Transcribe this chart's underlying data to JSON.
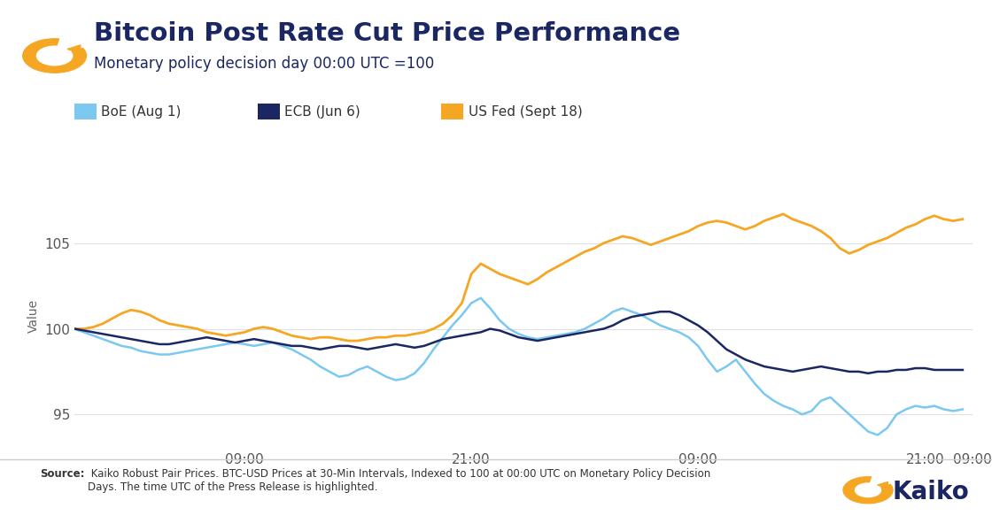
{
  "title": "Bitcoin Post Rate Cut Price Performance",
  "subtitle": "Monetary policy decision day 00:00 UTC =100",
  "ylabel": "Value",
  "source_bold": "Source:",
  "source_rest": " Kaiko Robust Pair Prices. BTC-USD Prices at 30-Min Intervals, Indexed to 100 at 00:00 UTC on Monetary Policy Decision\nDays. The time UTC of the Press Release is highlighted.",
  "legend": [
    "BoE (Aug 1)",
    "ECB (Jun 6)",
    "US Fed (Sept 18)"
  ],
  "colors": {
    "boe": "#7BC8F0",
    "ecb": "#1B2763",
    "fed": "#F5A623",
    "title": "#1B2763",
    "subtitle": "#1B2763",
    "background": "#FFFFFF",
    "grid": "#E0E0E0"
  },
  "xtick_labels": [
    "09:00",
    "21:00",
    "09:00",
    "21:00",
    "09:00"
  ],
  "yticks": [
    95,
    100,
    105
  ],
  "ylim": [
    93.0,
    108.5
  ],
  "xlim": [
    0,
    95
  ],
  "xtick_positions": [
    18,
    42,
    66,
    90,
    95
  ],
  "boe": [
    100.0,
    99.8,
    99.6,
    99.4,
    99.2,
    99.0,
    98.9,
    98.7,
    98.6,
    98.5,
    98.5,
    98.6,
    98.7,
    98.8,
    98.9,
    99.0,
    99.1,
    99.2,
    99.1,
    99.0,
    99.1,
    99.2,
    99.0,
    98.8,
    98.5,
    98.2,
    97.8,
    97.5,
    97.2,
    97.3,
    97.6,
    97.8,
    97.5,
    97.2,
    97.0,
    97.1,
    97.4,
    98.0,
    98.8,
    99.5,
    100.2,
    100.8,
    101.5,
    101.8,
    101.2,
    100.5,
    100.0,
    99.7,
    99.5,
    99.4,
    99.5,
    99.6,
    99.7,
    99.8,
    100.0,
    100.3,
    100.6,
    101.0,
    101.2,
    101.0,
    100.8,
    100.5,
    100.2,
    100.0,
    99.8,
    99.5,
    99.0,
    98.2,
    97.5,
    97.8,
    98.2,
    97.5,
    96.8,
    96.2,
    95.8,
    95.5,
    95.3,
    95.0,
    95.2,
    95.8,
    96.0,
    95.5,
    95.0,
    94.5,
    94.0,
    93.8,
    94.2,
    95.0,
    95.3,
    95.5,
    95.4,
    95.5,
    95.3,
    95.2,
    95.3
  ],
  "ecb": [
    100.0,
    99.9,
    99.8,
    99.7,
    99.6,
    99.5,
    99.4,
    99.3,
    99.2,
    99.1,
    99.1,
    99.2,
    99.3,
    99.4,
    99.5,
    99.4,
    99.3,
    99.2,
    99.3,
    99.4,
    99.3,
    99.2,
    99.1,
    99.0,
    99.0,
    98.9,
    98.8,
    98.9,
    99.0,
    99.0,
    98.9,
    98.8,
    98.9,
    99.0,
    99.1,
    99.0,
    98.9,
    99.0,
    99.2,
    99.4,
    99.5,
    99.6,
    99.7,
    99.8,
    100.0,
    99.9,
    99.7,
    99.5,
    99.4,
    99.3,
    99.4,
    99.5,
    99.6,
    99.7,
    99.8,
    99.9,
    100.0,
    100.2,
    100.5,
    100.7,
    100.8,
    100.9,
    101.0,
    101.0,
    100.8,
    100.5,
    100.2,
    99.8,
    99.3,
    98.8,
    98.5,
    98.2,
    98.0,
    97.8,
    97.7,
    97.6,
    97.5,
    97.6,
    97.7,
    97.8,
    97.7,
    97.6,
    97.5,
    97.5,
    97.4,
    97.5,
    97.5,
    97.6,
    97.6,
    97.7,
    97.7,
    97.6,
    97.6,
    97.6,
    97.6
  ],
  "fed": [
    100.0,
    100.0,
    100.1,
    100.3,
    100.6,
    100.9,
    101.1,
    101.0,
    100.8,
    100.5,
    100.3,
    100.2,
    100.1,
    100.0,
    99.8,
    99.7,
    99.6,
    99.7,
    99.8,
    100.0,
    100.1,
    100.0,
    99.8,
    99.6,
    99.5,
    99.4,
    99.5,
    99.5,
    99.4,
    99.3,
    99.3,
    99.4,
    99.5,
    99.5,
    99.6,
    99.6,
    99.7,
    99.8,
    100.0,
    100.3,
    100.8,
    101.5,
    103.2,
    103.8,
    103.5,
    103.2,
    103.0,
    102.8,
    102.6,
    102.9,
    103.3,
    103.6,
    103.9,
    104.2,
    104.5,
    104.7,
    105.0,
    105.2,
    105.4,
    105.3,
    105.1,
    104.9,
    105.1,
    105.3,
    105.5,
    105.7,
    106.0,
    106.2,
    106.3,
    106.2,
    106.0,
    105.8,
    106.0,
    106.3,
    106.5,
    106.7,
    106.4,
    106.2,
    106.0,
    105.7,
    105.3,
    104.7,
    104.4,
    104.6,
    104.9,
    105.1,
    105.3,
    105.6,
    105.9,
    106.1,
    106.4,
    106.6,
    106.4,
    106.3,
    106.4
  ]
}
